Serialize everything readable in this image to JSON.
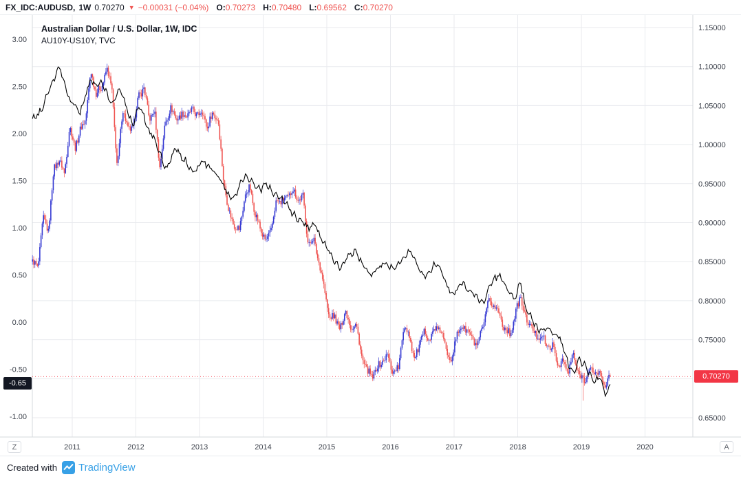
{
  "topbar": {
    "symbol": "FX_IDC:AUDUSD,",
    "interval": "1W",
    "last_price": "0.70270",
    "direction_icon": "▼",
    "change": "−0.00031 (−0.04%)",
    "open_label": "O:",
    "open": "0.70273",
    "high_label": "H:",
    "high": "0.70480",
    "low_label": "L:",
    "low": "0.69562",
    "close_label": "C:",
    "close": "0.70270"
  },
  "legend": {
    "line1": "Australian Dollar / U.S. Dollar, 1W, IDC",
    "line2": "AU10Y-US10Y, TVC"
  },
  "corners": {
    "left": "Z",
    "right": "A"
  },
  "footer": {
    "created_with": "Created with",
    "brand": "TradingView"
  },
  "colors": {
    "candle_up": "#3438d2",
    "candle_down": "#ef5350",
    "spread_line": "#000000",
    "last_price_line": "#f23645",
    "last_price_label_bg": "#f23645",
    "left_last_label_bg": "#131722",
    "negative_text": "#ef5350",
    "grid": "#e8eaee",
    "axis_border": "#d6d9de",
    "axis_text": "#3c414b",
    "brand_blue": "#37a0e6"
  },
  "chart_data": {
    "type": "candlestick+line",
    "title": "Australian Dollar / U.S. Dollar, 1W, IDC",
    "overlay_title": "AU10Y-US10Y, TVC",
    "x_unit": "decimal years; values are monthly estimates read from chart",
    "x_start": 2010.375,
    "x_step": 0.0833333,
    "x_ticks": [
      "2011",
      "2012",
      "2013",
      "2014",
      "2015",
      "2016",
      "2017",
      "2018",
      "2019",
      "2020"
    ],
    "right_axis": {
      "min": 0.65,
      "max": 1.15,
      "tick_step": 0.05,
      "decimals": 5,
      "current": 0.7027,
      "current_label": "0.70270"
    },
    "left_axis": {
      "min": -1.0,
      "max": 3.0,
      "tick_step": 0.5,
      "decimals": 2,
      "current": -0.65,
      "current_label": "-0.65"
    },
    "grid": true,
    "last_price_line": 0.7027,
    "flash_crash": {
      "x": 2019.02,
      "low": 0.672
    },
    "series": [
      {
        "name": "FX_IDC:AUDUSD weekly candles (monthly close estimates)",
        "type": "candlestick",
        "axis": "right",
        "values": [
          0.85,
          0.842,
          0.905,
          0.89,
          0.967,
          0.982,
          0.962,
          1.023,
          0.996,
          1.018,
          1.033,
          1.093,
          1.067,
          1.072,
          1.098,
          1.07,
          0.967,
          1.048,
          1.018,
          1.023,
          1.062,
          1.073,
          1.034,
          1.042,
          0.972,
          1.024,
          1.049,
          1.033,
          1.038,
          1.037,
          1.043,
          1.039,
          1.042,
          1.022,
          1.041,
          1.032,
          0.957,
          0.914,
          0.898,
          0.89,
          0.932,
          0.946,
          0.911,
          0.892,
          0.875,
          0.892,
          0.927,
          0.928,
          0.931,
          0.943,
          0.93,
          0.933,
          0.872,
          0.879,
          0.85,
          0.817,
          0.776,
          0.781,
          0.761,
          0.79,
          0.764,
          0.771,
          0.73,
          0.711,
          0.702,
          0.714,
          0.723,
          0.729,
          0.708,
          0.714,
          0.766,
          0.76,
          0.723,
          0.745,
          0.76,
          0.751,
          0.766,
          0.761,
          0.738,
          0.723,
          0.758,
          0.766,
          0.763,
          0.749,
          0.743,
          0.769,
          0.798,
          0.795,
          0.783,
          0.765,
          0.757,
          0.781,
          0.806,
          0.776,
          0.768,
          0.753,
          0.757,
          0.74,
          0.743,
          0.719,
          0.722,
          0.708,
          0.731,
          0.705,
          0.699,
          0.709,
          0.71,
          0.705,
          0.693,
          0.7027
        ]
      },
      {
        "name": "AU10Y-US10Y yield spread (monthly estimates)",
        "type": "line",
        "axis": "left",
        "values": [
          2.15,
          2.2,
          2.28,
          2.45,
          2.55,
          2.72,
          2.55,
          2.35,
          2.3,
          2.22,
          2.4,
          2.58,
          2.5,
          2.55,
          2.42,
          2.3,
          2.45,
          2.42,
          2.22,
          2.1,
          2.3,
          2.18,
          2.02,
          1.95,
          1.8,
          1.62,
          1.7,
          1.85,
          1.75,
          1.7,
          1.62,
          1.6,
          1.72,
          1.65,
          1.6,
          1.55,
          1.45,
          1.33,
          1.3,
          1.45,
          1.55,
          1.52,
          1.45,
          1.4,
          1.47,
          1.4,
          1.35,
          1.3,
          1.25,
          1.15,
          1.1,
          1.05,
          1.0,
          1.05,
          0.95,
          0.83,
          0.73,
          0.63,
          0.58,
          0.65,
          0.72,
          0.75,
          0.63,
          0.55,
          0.5,
          0.56,
          0.62,
          0.6,
          0.55,
          0.62,
          0.68,
          0.75,
          0.7,
          0.55,
          0.48,
          0.55,
          0.62,
          0.55,
          0.42,
          0.3,
          0.35,
          0.42,
          0.35,
          0.3,
          0.25,
          0.2,
          0.35,
          0.45,
          0.5,
          0.4,
          0.3,
          0.25,
          0.42,
          0.15,
          0.05,
          -0.05,
          -0.1,
          -0.05,
          -0.1,
          -0.15,
          -0.25,
          -0.45,
          -0.55,
          -0.4,
          -0.45,
          -0.55,
          -0.62,
          -0.58,
          -0.78,
          -0.65
        ]
      }
    ]
  }
}
